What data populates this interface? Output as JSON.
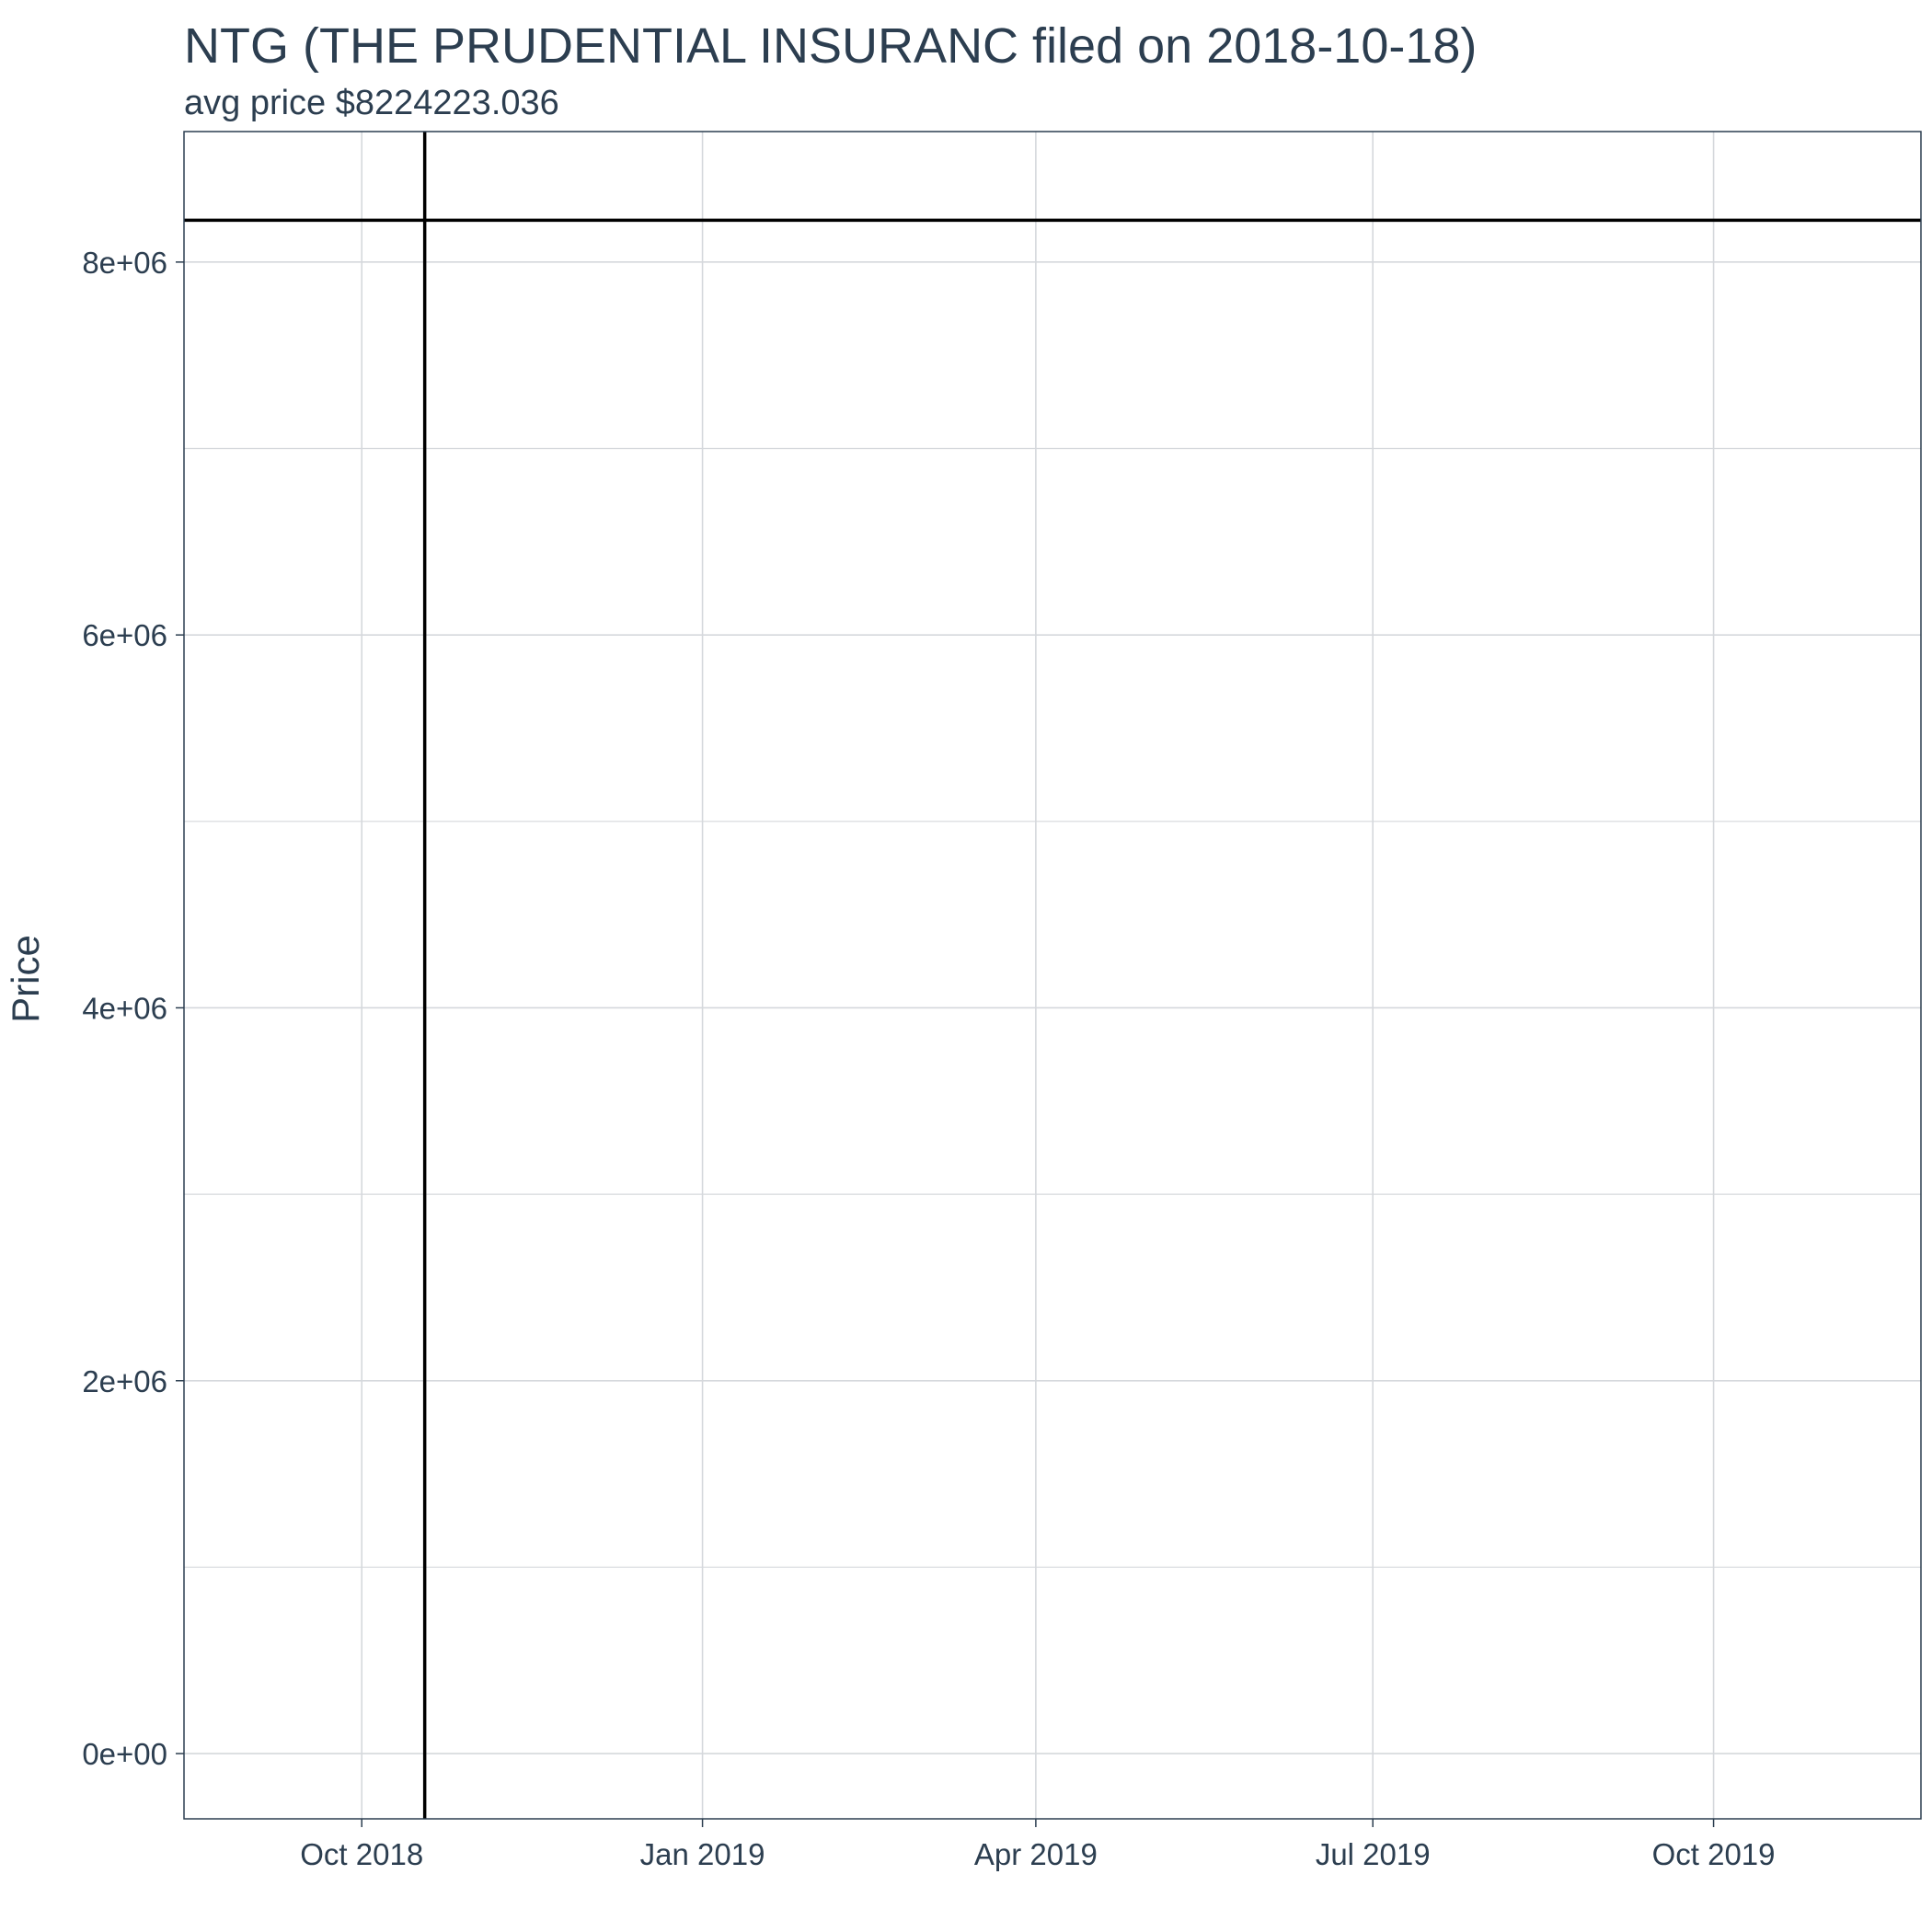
{
  "chart_data": {
    "type": "line",
    "title": "NTG (THE PRUDENTIAL INSURANC filed on 2018-10-18)",
    "subtitle": "avg price $8224223.036",
    "xlabel": "",
    "ylabel": "Price",
    "x_range": [
      "2018-08-14",
      "2019-11-26"
    ],
    "ylim": [
      -350000,
      8700000
    ],
    "y_ticks": [
      {
        "value": 0,
        "label": "0e+00"
      },
      {
        "value": 2000000,
        "label": "2e+06"
      },
      {
        "value": 4000000,
        "label": "4e+06"
      },
      {
        "value": 6000000,
        "label": "6e+06"
      },
      {
        "value": 8000000,
        "label": "8e+06"
      }
    ],
    "y_minor_ticks": [
      1000000,
      3000000,
      5000000,
      7000000
    ],
    "x_ticks": [
      {
        "value": "2018-10-01",
        "label": "Oct 2018"
      },
      {
        "value": "2019-01-01",
        "label": "Jan 2019"
      },
      {
        "value": "2019-04-01",
        "label": "Apr 2019"
      },
      {
        "value": "2019-07-01",
        "label": "Jul 2019"
      },
      {
        "value": "2019-10-01",
        "label": "Oct 2019"
      }
    ],
    "hline": {
      "y": 8224223.036
    },
    "vline": {
      "x": "2018-10-18"
    },
    "grid": true,
    "colors": {
      "text": "#2c3e50",
      "grid": "#d5d8dc",
      "panel_border": "#2c3e50",
      "reference_lines": "#000000"
    }
  }
}
